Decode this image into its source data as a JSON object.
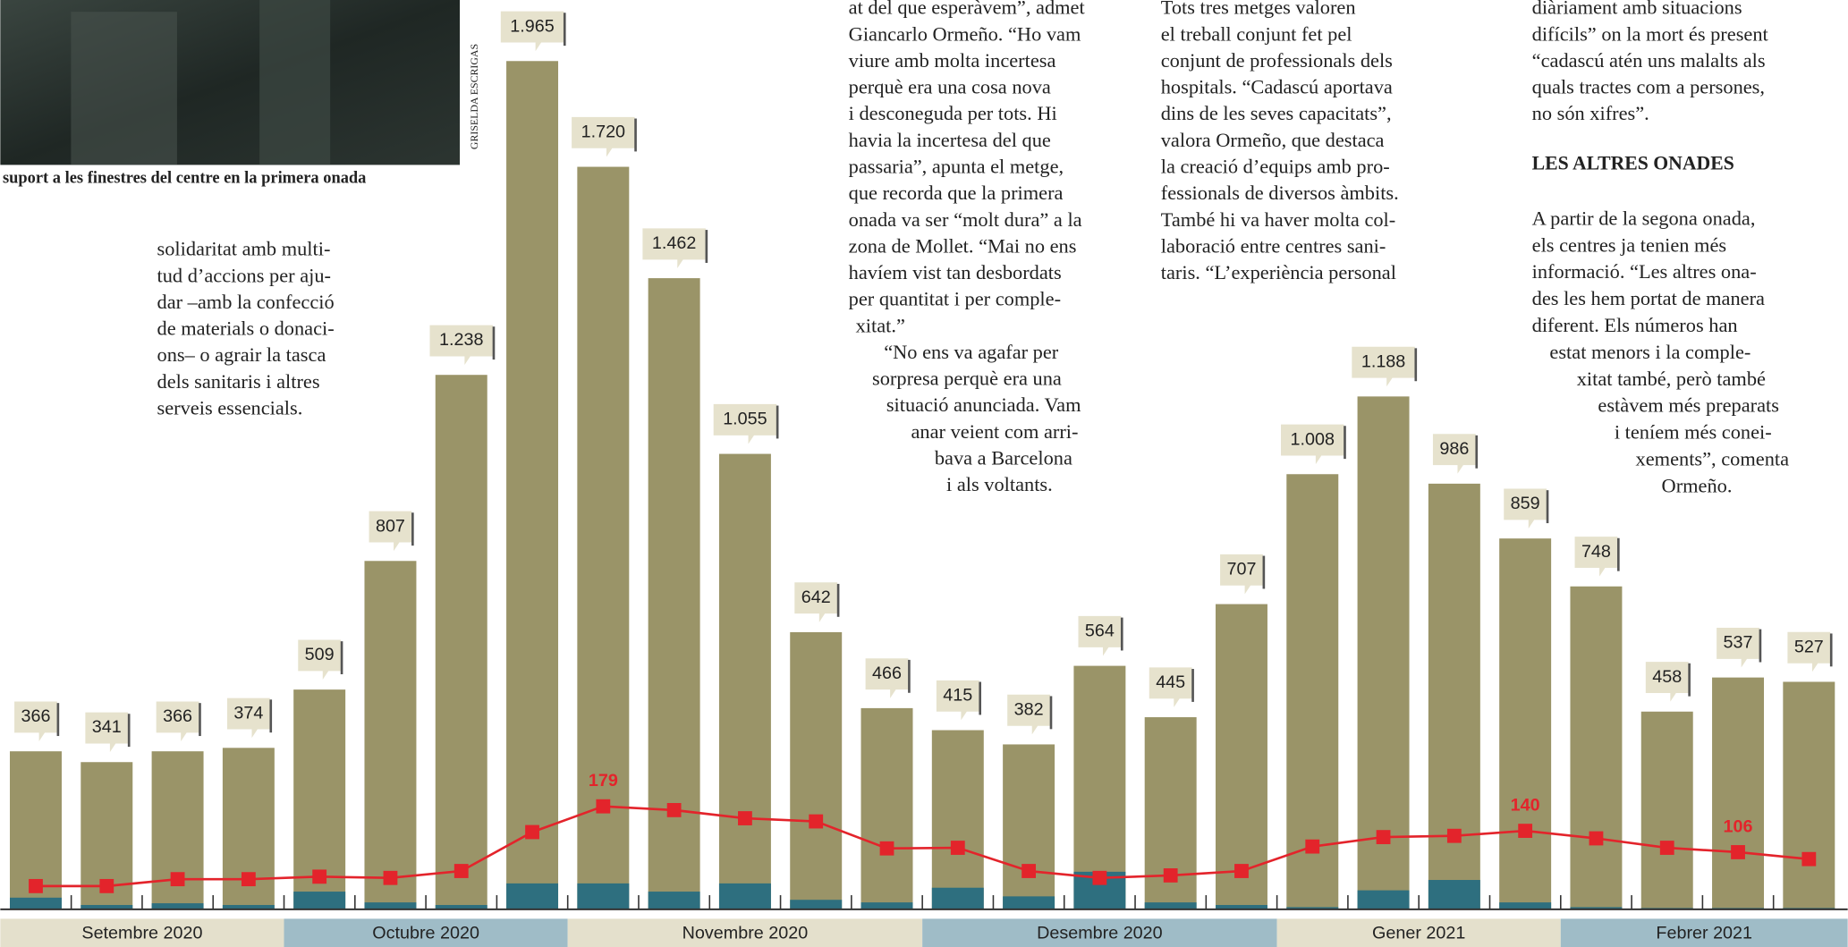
{
  "chart_data": {
    "type": "bar",
    "categories": [
      null,
      null,
      null,
      null,
      null,
      null,
      null,
      null,
      null,
      null,
      null,
      null,
      null,
      null,
      null,
      null,
      null,
      null,
      null,
      null,
      null,
      null,
      null,
      null,
      null,
      null
    ],
    "months": [
      "Setembre 2020",
      "Octubre 2020",
      "Novembre 2020",
      "Desembre 2020",
      "Gener 2021",
      "Febrer 2021"
    ],
    "ylim": [
      0,
      2000
    ],
    "y2lim": [
      15,
      1390
    ],
    "series": [
      {
        "color": "#9a9468",
        "values": [
          366,
          341,
          366,
          374,
          509,
          807,
          1238,
          1965,
          1720,
          1462,
          1055,
          642,
          466,
          415,
          382,
          564,
          445,
          707,
          1008,
          1188,
          986,
          859,
          748,
          458,
          537,
          527
        ],
        "value_labels": [
          "366",
          "341",
          "366",
          "374",
          "509",
          "807",
          "1.238",
          "1.965",
          "1.720",
          "1.462",
          "1.055",
          "642",
          "466",
          "415",
          "382",
          "564",
          "445",
          "707",
          "1.008",
          "1.188",
          "986",
          "859",
          "748",
          "458",
          "537",
          "527"
        ]
      },
      {
        "color": "#2e6f7f",
        "values": [
          27,
          10,
          14,
          10,
          41,
          16,
          10,
          60,
          60,
          41,
          60,
          22,
          16,
          50,
          30,
          87,
          16,
          10,
          5,
          44,
          68,
          16,
          5,
          3,
          3,
          3
        ]
      },
      {
        "color": "#e3242b",
        "type": "line",
        "axis": "y2",
        "values": [
          52,
          52,
          63,
          63,
          67,
          65,
          76,
          138,
          179,
          173,
          160,
          155,
          112,
          113,
          76,
          65,
          69,
          76,
          115,
          130,
          132,
          140,
          128,
          113,
          106,
          95
        ],
        "value_labels": [
          null,
          null,
          null,
          null,
          null,
          null,
          null,
          null,
          "179",
          null,
          null,
          null,
          null,
          null,
          null,
          null,
          null,
          null,
          null,
          null,
          null,
          "140",
          null,
          null,
          "106",
          null
        ]
      }
    ]
  },
  "photo": {
    "caption": "suport a les finestres del centre en la primera onada",
    "credit": "GRISELDA ESCRIGAS"
  },
  "article": {
    "blocks": [
      {
        "lines": [
          "solidaritat amb multi-",
          "tud d’accions per aju-",
          "dar –amb la confecció",
          "de materials o donaci-",
          "ons– o agrair la tasca",
          "dels sanitaris i altres",
          "serveis essencials."
        ]
      },
      {
        "lines": [
          "at del que esperàvem”, admet",
          "Giancarlo Ormeño. “Ho vam",
          "viure amb molta incertesa",
          "perquè era una cosa nova",
          "i desconeguda per tots. Hi",
          "havia la incertesa del que",
          "passaria”, apunta el metge,",
          "que recorda que la primera",
          "onada va ser “molt dura” a la",
          "zona de Mollet. “Mai no ens",
          "havíem vist tan desbordats",
          "per quantitat i per comple-",
          "xitat.”",
          "“No ens va agafar per",
          "sorpresa perquè era una",
          "situació anunciada. Vam",
          "anar veient com arri-",
          "bava a Barcelona",
          "i als voltants."
        ]
      },
      {
        "lines": [
          "Tots tres metges valoren",
          "el treball conjunt fet pel",
          "conjunt de professionals dels",
          "hospitals. “Cadascú aportava",
          "dins de les seves capacitats”,",
          "valora Ormeño, que destaca",
          "la creació d’equips amb pro-",
          "fessionals de diversos àmbits.",
          "També hi va haver molta col-",
          "laboració entre centres sani-",
          "taris. “L’experiència personal"
        ]
      },
      {
        "lines": [
          "diàriament amb situacions",
          "difícils” on la mort és present",
          "“cadascú atén uns malalts als",
          "quals tractes com a persones,",
          "no són xifres”."
        ]
      },
      {
        "heading": "LES ALTRES ONADES",
        "lines": [
          "A partir de la segona onada,",
          "els centres ja tenien més",
          "informació. “Les altres ona-",
          "des les hem portat de manera",
          "diferent. Els números han",
          "estat menors i la comple-",
          "xitat també, però també",
          "estàvem més preparats",
          "i teníem més conei-",
          "xements”, comenta",
          "Ormeño."
        ]
      }
    ]
  }
}
